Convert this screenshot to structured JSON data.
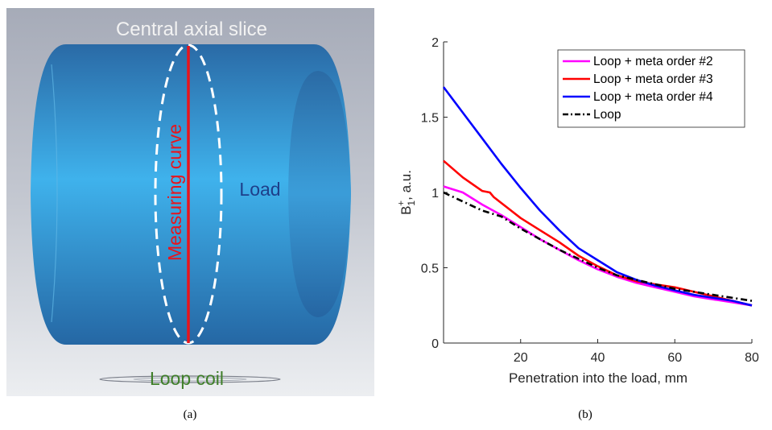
{
  "panel_a": {
    "top_label": "Central axial slice",
    "curve_label": "Measuring curve",
    "load_label": "Load",
    "coil_label": "Loop coil",
    "caption": "(a)",
    "colors": {
      "top_label": "#f2f2f2",
      "curve": "#e8141c",
      "load_label": "#1e3f8a",
      "coil_label": "#3f7f2a"
    }
  },
  "panel_b": {
    "caption": "(b)"
  },
  "chart_data": {
    "type": "line",
    "title": "",
    "xlabel": "Penetration into the load, mm",
    "ylabel": "B1+, a.u.",
    "ylabel_main": "B",
    "ylabel_sub": "1",
    "ylabel_sup": "+",
    "ylabel_rest": ", a.u.",
    "xlim": [
      0,
      80
    ],
    "ylim": [
      0,
      2
    ],
    "xticks": [
      "20",
      "40",
      "60",
      "80"
    ],
    "yticks": [
      "0",
      "0.5",
      "1",
      "1.5",
      "2"
    ],
    "grid": false,
    "legend_position": "top-right",
    "series": [
      {
        "name": "Loop + meta order #2",
        "color": "#ff00ff",
        "dash": "",
        "x": [
          0,
          5,
          10,
          15,
          20,
          25,
          30,
          35,
          40,
          45,
          50,
          55,
          60,
          65,
          70,
          75,
          80
        ],
        "y": [
          1.04,
          1.0,
          0.92,
          0.85,
          0.77,
          0.69,
          0.62,
          0.55,
          0.49,
          0.44,
          0.4,
          0.37,
          0.34,
          0.31,
          0.29,
          0.27,
          0.25
        ]
      },
      {
        "name": "Loop + meta order #3",
        "color": "#ff0000",
        "dash": "",
        "x": [
          0,
          5,
          10,
          12,
          13,
          15,
          20,
          25,
          30,
          35,
          40,
          45,
          50,
          55,
          60,
          65,
          70,
          75,
          80
        ],
        "y": [
          1.21,
          1.1,
          1.01,
          1.0,
          0.97,
          0.93,
          0.83,
          0.75,
          0.67,
          0.58,
          0.51,
          0.45,
          0.41,
          0.39,
          0.37,
          0.34,
          0.31,
          0.28,
          0.25
        ]
      },
      {
        "name": "Loop + meta order #4",
        "color": "#0000ff",
        "dash": "",
        "x": [
          0,
          5,
          10,
          15,
          20,
          25,
          30,
          35,
          40,
          45,
          50,
          55,
          60,
          65,
          70,
          75,
          80
        ],
        "y": [
          1.7,
          1.53,
          1.36,
          1.19,
          1.03,
          0.88,
          0.75,
          0.63,
          0.55,
          0.47,
          0.42,
          0.38,
          0.35,
          0.32,
          0.3,
          0.28,
          0.25
        ]
      },
      {
        "name": "Loop",
        "color": "#000000",
        "dash": "8,4,2,4",
        "x": [
          0,
          5,
          10,
          15,
          20,
          25,
          30,
          35,
          40,
          45,
          50,
          55,
          60,
          65,
          70,
          75,
          80
        ],
        "y": [
          1.0,
          0.94,
          0.88,
          0.84,
          0.76,
          0.69,
          0.62,
          0.56,
          0.5,
          0.45,
          0.42,
          0.39,
          0.36,
          0.34,
          0.32,
          0.3,
          0.28
        ]
      }
    ]
  }
}
